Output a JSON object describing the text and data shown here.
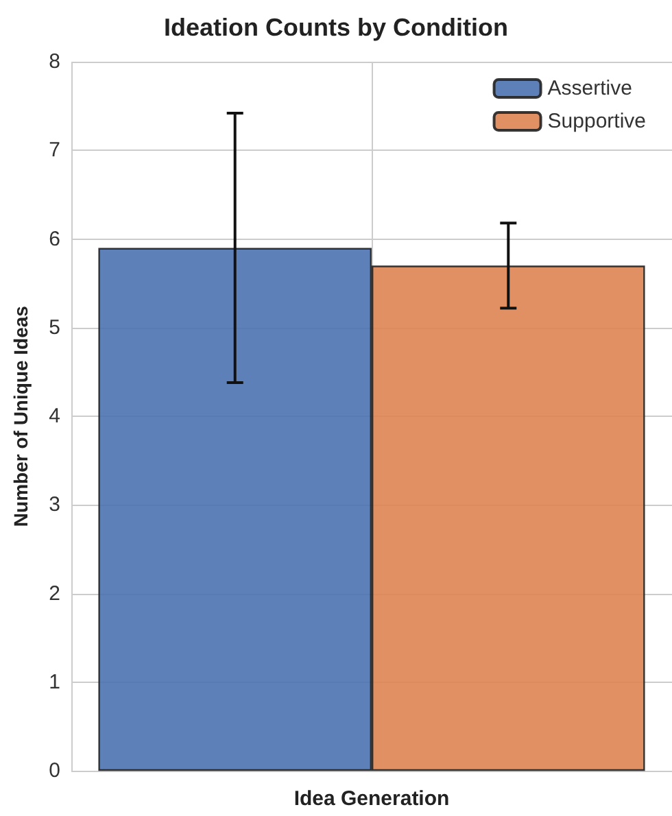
{
  "chart_data": {
    "type": "bar",
    "title": "Ideation Counts by Condition",
    "xlabel": "Idea Generation",
    "ylabel": "Number of Unique Ideas",
    "categories": [
      null
    ],
    "series": [
      {
        "name": "Assertive",
        "color": "#4c72b0",
        "values": [
          5.9
        ],
        "errors": [
          1.52
        ]
      },
      {
        "name": "Supportive",
        "color": "#dd8452",
        "values": [
          5.7
        ],
        "errors": [
          0.48
        ]
      }
    ],
    "ylim": [
      0,
      8
    ],
    "yticks": [
      0,
      1,
      2,
      3,
      4,
      5,
      6,
      7,
      8
    ],
    "grid": true,
    "legend": "top right"
  }
}
